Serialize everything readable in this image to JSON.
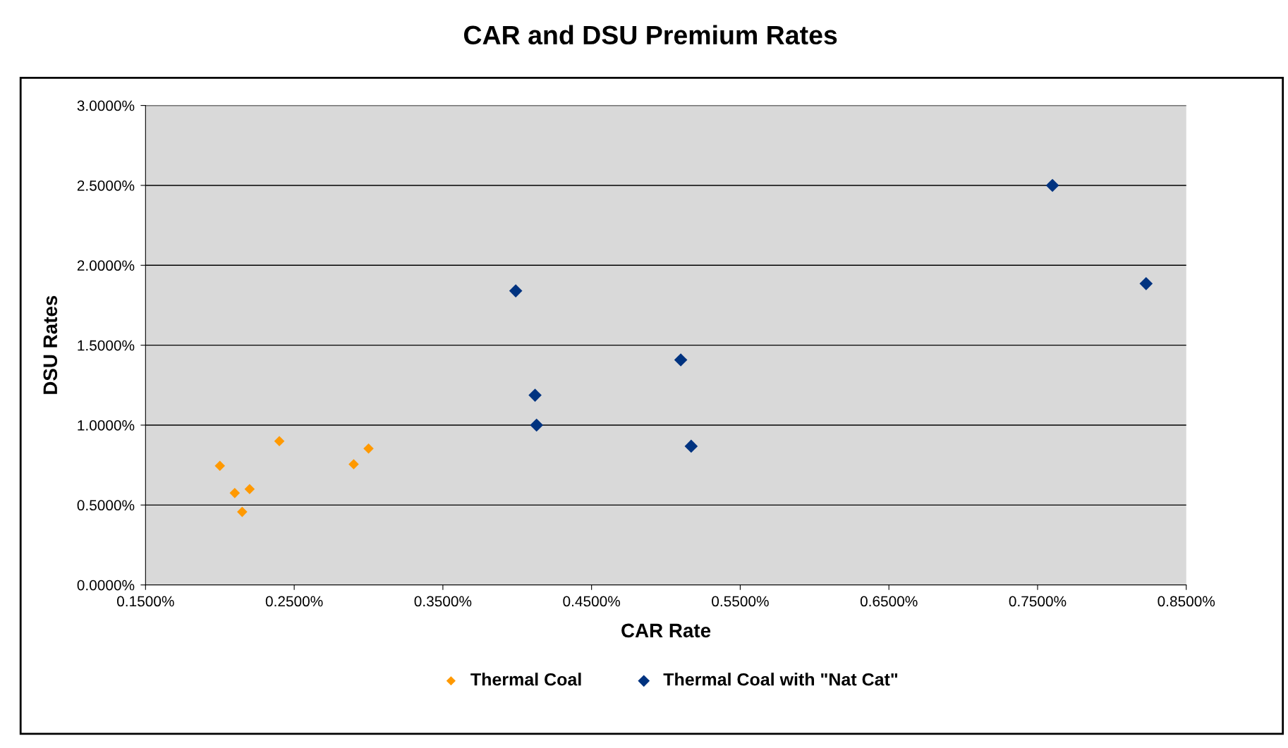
{
  "chart_data": {
    "type": "scatter",
    "title": "CAR and DSU Premium Rates",
    "xlabel": "CAR Rate",
    "ylabel": "DSU Rates",
    "series": [
      {
        "name": "Thermal Coal",
        "color": "#ff9900",
        "x": [
          0.2,
          0.21,
          0.22,
          0.215,
          0.24,
          0.29,
          0.3
        ],
        "values": [
          0.745,
          0.575,
          0.6,
          0.457,
          0.9,
          0.755,
          0.853
        ]
      },
      {
        "name": "Thermal Coal with \"Nat Cat\"",
        "color": "#003380",
        "x": [
          0.399,
          0.412,
          0.413,
          0.51,
          0.517,
          0.76,
          0.823
        ],
        "values": [
          1.84,
          1.187,
          1.0,
          1.408,
          0.868,
          2.5,
          1.885
        ]
      }
    ],
    "xlim": [
      0.15,
      0.85
    ],
    "xticks": [
      {
        "value": 0.15,
        "label": "0.1500%"
      },
      {
        "value": 0.25,
        "label": "0.2500%"
      },
      {
        "value": 0.35,
        "label": "0.3500%"
      },
      {
        "value": 0.45,
        "label": "0.4500%"
      },
      {
        "value": 0.55,
        "label": "0.5500%"
      },
      {
        "value": 0.65,
        "label": "0.6500%"
      },
      {
        "value": 0.75,
        "label": "0.7500%"
      },
      {
        "value": 0.85,
        "label": "0.8500%"
      }
    ],
    "ylim": [
      0,
      3
    ],
    "yticks": [
      {
        "value": 0,
        "label": "0.0000%"
      },
      {
        "value": 0.5,
        "label": "0.5000%"
      },
      {
        "value": 1,
        "label": "1.0000%"
      },
      {
        "value": 1.5,
        "label": "1.5000%"
      },
      {
        "value": 2,
        "label": "2.0000%"
      },
      {
        "value": 2.5,
        "label": "2.5000%"
      },
      {
        "value": 3,
        "label": "3.0000%"
      }
    ],
    "grid": "y",
    "legend": "bottom",
    "marker": "diamond"
  }
}
